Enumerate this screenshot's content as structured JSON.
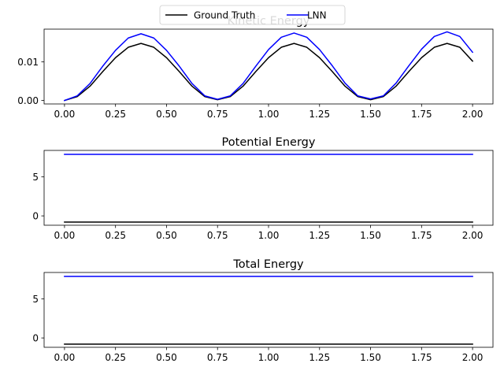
{
  "legend": {
    "placement": "top-center",
    "items": [
      {
        "label": "Ground Truth",
        "color": "#000000"
      },
      {
        "label": "LNN",
        "color": "#0000ff"
      }
    ]
  },
  "chart_data": [
    {
      "type": "line",
      "title": "Kinetic Energy",
      "xlabel": "",
      "ylabel": "",
      "xlim": [
        -0.1,
        2.1
      ],
      "ylim": [
        -0.0009,
        0.0185
      ],
      "xticks": [
        0.0,
        0.25,
        0.5,
        0.75,
        1.0,
        1.25,
        1.5,
        1.75,
        2.0
      ],
      "xtick_labels": [
        "0.00",
        "0.25",
        "0.50",
        "0.75",
        "1.00",
        "1.25",
        "1.50",
        "1.75",
        "2.00"
      ],
      "yticks": [
        0.0,
        0.01
      ],
      "ytick_labels": [
        "0.00",
        "0.01"
      ],
      "grid": false,
      "series": [
        {
          "name": "Ground Truth",
          "color": "#000000",
          "x": [
            0.0,
            0.0625,
            0.125,
            0.1875,
            0.25,
            0.3125,
            0.375,
            0.4375,
            0.5,
            0.5625,
            0.625,
            0.6875,
            0.75,
            0.8125,
            0.875,
            0.9375,
            1.0,
            1.0625,
            1.125,
            1.1875,
            1.25,
            1.3125,
            1.375,
            1.4375,
            1.5,
            1.5625,
            1.625,
            1.6875,
            1.75,
            1.8125,
            1.875,
            1.9375,
            2.0
          ],
          "y": [
            0.0,
            0.001,
            0.0037,
            0.0075,
            0.0111,
            0.0138,
            0.0148,
            0.0138,
            0.0111,
            0.0075,
            0.0037,
            0.001,
            0.0002,
            0.001,
            0.0037,
            0.0075,
            0.0111,
            0.0138,
            0.0148,
            0.0138,
            0.0111,
            0.0075,
            0.0037,
            0.001,
            0.0002,
            0.001,
            0.0037,
            0.0075,
            0.0111,
            0.0138,
            0.0148,
            0.0138,
            0.0102
          ]
        },
        {
          "name": "LNN",
          "color": "#0000ff",
          "x": [
            0.0,
            0.0625,
            0.125,
            0.1875,
            0.25,
            0.3125,
            0.375,
            0.4375,
            0.5,
            0.5625,
            0.625,
            0.6875,
            0.75,
            0.8125,
            0.875,
            0.9375,
            1.0,
            1.0625,
            1.125,
            1.1875,
            1.25,
            1.3125,
            1.375,
            1.4375,
            1.5,
            1.5625,
            1.625,
            1.6875,
            1.75,
            1.8125,
            1.875,
            1.9375,
            2.0
          ],
          "y": [
            0.0,
            0.0012,
            0.0044,
            0.0089,
            0.013,
            0.0162,
            0.0173,
            0.0162,
            0.013,
            0.0089,
            0.0044,
            0.0012,
            0.0003,
            0.0012,
            0.0044,
            0.0089,
            0.0132,
            0.0164,
            0.0175,
            0.0164,
            0.0132,
            0.009,
            0.0045,
            0.0012,
            0.0004,
            0.0012,
            0.0045,
            0.009,
            0.0133,
            0.0166,
            0.0178,
            0.0166,
            0.0125
          ]
        }
      ]
    },
    {
      "type": "line",
      "title": "Potential Energy",
      "xlabel": "",
      "ylabel": "",
      "xlim": [
        -0.1,
        2.1
      ],
      "ylim": [
        -1.2,
        8.4
      ],
      "xticks": [
        0.0,
        0.25,
        0.5,
        0.75,
        1.0,
        1.25,
        1.5,
        1.75,
        2.0
      ],
      "xtick_labels": [
        "0.00",
        "0.25",
        "0.50",
        "0.75",
        "1.00",
        "1.25",
        "1.50",
        "1.75",
        "2.00"
      ],
      "yticks": [
        0,
        5
      ],
      "ytick_labels": [
        "0",
        "5"
      ],
      "grid": false,
      "series": [
        {
          "name": "Ground Truth",
          "color": "#000000",
          "x": [
            0.0,
            2.0
          ],
          "y": [
            -0.8,
            -0.8
          ]
        },
        {
          "name": "LNN",
          "color": "#0000ff",
          "x": [
            0.0,
            2.0
          ],
          "y": [
            7.9,
            7.9
          ]
        }
      ]
    },
    {
      "type": "line",
      "title": "Total Energy",
      "xlabel": "",
      "ylabel": "",
      "xlim": [
        -0.1,
        2.1
      ],
      "ylim": [
        -1.2,
        8.4
      ],
      "xticks": [
        0.0,
        0.25,
        0.5,
        0.75,
        1.0,
        1.25,
        1.5,
        1.75,
        2.0
      ],
      "xtick_labels": [
        "0.00",
        "0.25",
        "0.50",
        "0.75",
        "1.00",
        "1.25",
        "1.50",
        "1.75",
        "2.00"
      ],
      "yticks": [
        0,
        5
      ],
      "ytick_labels": [
        "0",
        "5"
      ],
      "grid": false,
      "series": [
        {
          "name": "Ground Truth",
          "color": "#000000",
          "x": [
            0.0,
            2.0
          ],
          "y": [
            -0.8,
            -0.8
          ]
        },
        {
          "name": "LNN",
          "color": "#0000ff",
          "x": [
            0.0,
            2.0
          ],
          "y": [
            7.9,
            7.9
          ]
        }
      ]
    }
  ]
}
